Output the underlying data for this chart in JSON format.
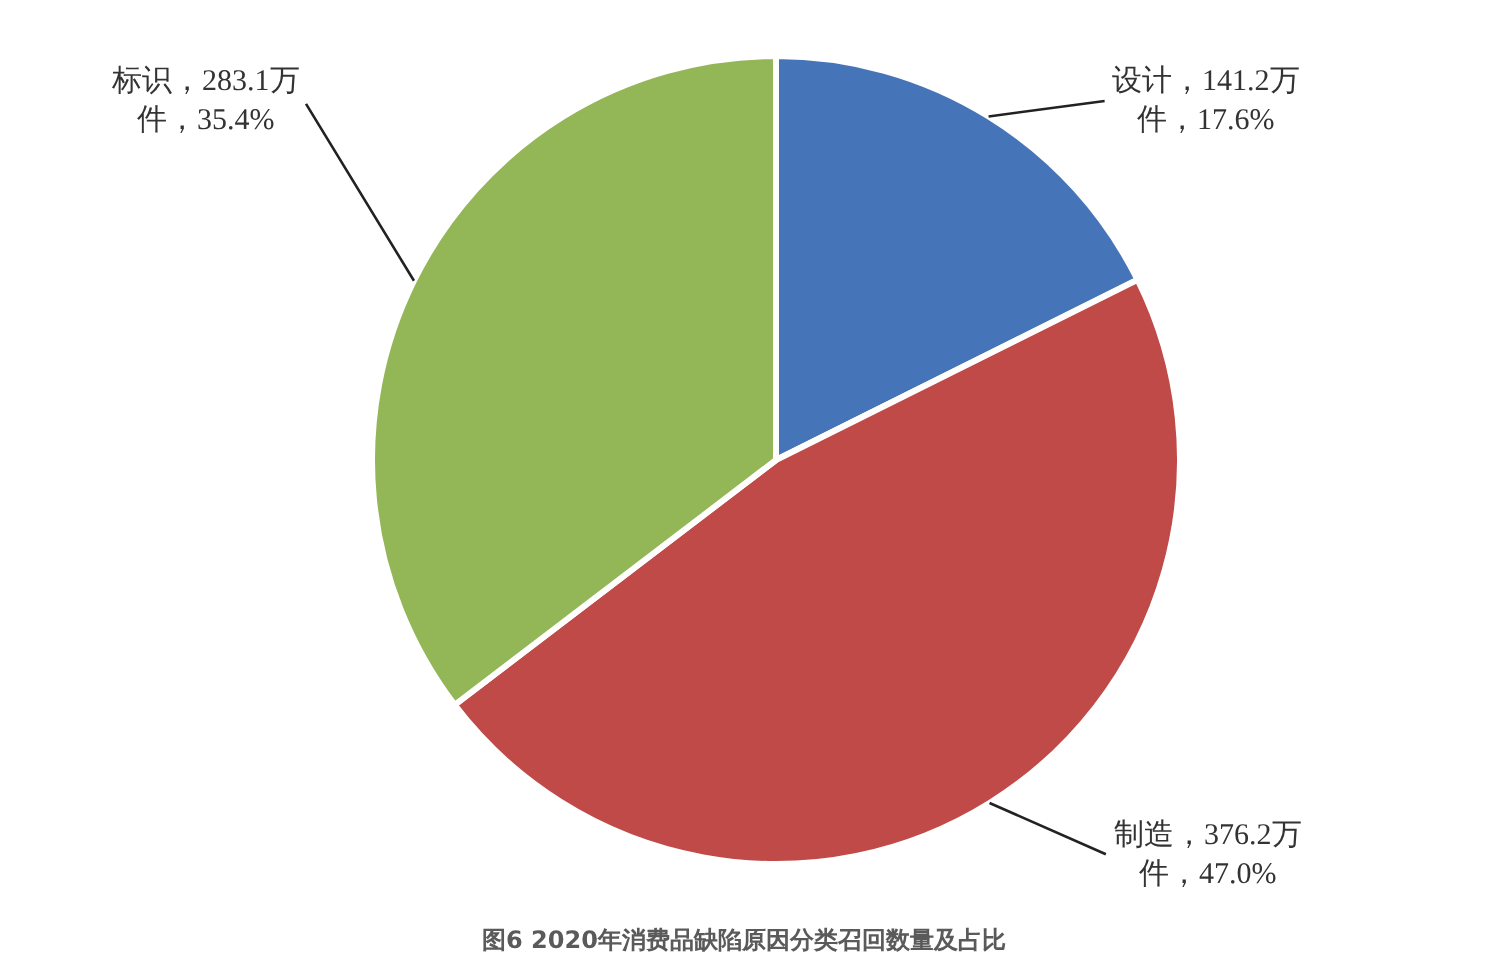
{
  "chart_data": {
    "type": "pie",
    "title": "图6 2020年消费品缺陷原因分类召回数量及占比",
    "categories": [
      "设计",
      "制造",
      "标识"
    ],
    "values": [
      141.2,
      376.2,
      283.1
    ],
    "colors": [
      "#4674b8",
      "#bf4a47",
      "#93b656"
    ],
    "value_labels": [
      "，141.2万件，17.6%",
      "，376.2万件，47.0%",
      "，283.1万件，35.4%"
    ],
    "legend": false
  }
}
